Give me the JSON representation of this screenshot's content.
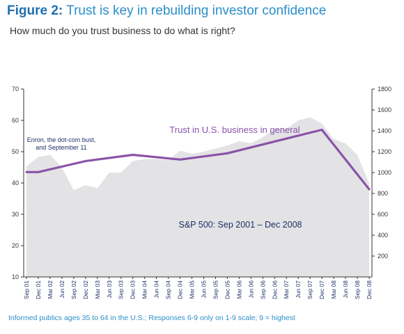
{
  "header": {
    "label": "Figure 2:",
    "title": "Trust is key in rebuilding investor confidence",
    "subtitle": "How much do you trust business to do what is right?"
  },
  "footnote": "Informed publics ages 35 to 64 in the U.S.; Responses 6-9 only on 1-9 scale; 9 = highest",
  "colors": {
    "trust_line": "#8b52a8",
    "sp500_area": "#e3e3e5",
    "title_blue": "#2a8fc9",
    "text_navy": "#1f2f66"
  },
  "chart_data": {
    "type": "area",
    "categories": [
      "Sep 01",
      "Dec 01",
      "Mar 02",
      "Jun 02",
      "Sep 02",
      "Dec 02",
      "Mar 03",
      "Jun 03",
      "Sep 03",
      "Dec 03",
      "Mar 04",
      "Jun 04",
      "Sep 04",
      "Dec 04",
      "Mar 05",
      "Jun 05",
      "Sep 05",
      "Dec 05",
      "Mar 06",
      "Jun 06",
      "Sep 06",
      "Dec 06",
      "Mar 07",
      "Jun 07",
      "Sep 07",
      "Dec 07",
      "Mar 08",
      "Jun 08",
      "Sep 08",
      "Dec 08"
    ],
    "y_left": {
      "min": 10,
      "max": 70,
      "ticks": [
        10,
        20,
        30,
        40,
        50,
        60,
        70
      ]
    },
    "y_right": {
      "min": 0,
      "max": 1800,
      "ticks": [
        200,
        400,
        600,
        800,
        1000,
        1200,
        1400,
        1600,
        1800
      ]
    },
    "grid": false,
    "series": [
      {
        "name": "Trust in U.S. business in general",
        "axis": "left",
        "type": "line",
        "points": [
          {
            "x": "Sep 01",
            "y": 43.5
          },
          {
            "x": "Dec 01",
            "y": 43.5
          },
          {
            "x": "Dec 02",
            "y": 47
          },
          {
            "x": "Dec 03",
            "y": 49
          },
          {
            "x": "Dec 04",
            "y": 47.5
          },
          {
            "x": "Dec 05",
            "y": 49.5
          },
          {
            "x": "Dec 07",
            "y": 57
          },
          {
            "x": "Dec 08",
            "y": 38
          }
        ]
      },
      {
        "name": "S&P 500: Sep 2001 – Dec 2008",
        "axis": "right",
        "type": "area",
        "values": [
          1060,
          1150,
          1170,
          1050,
          830,
          880,
          850,
          1000,
          1000,
          1110,
          1130,
          1130,
          1120,
          1210,
          1180,
          1200,
          1230,
          1260,
          1300,
          1280,
          1340,
          1420,
          1420,
          1500,
          1530,
          1470,
          1320,
          1280,
          1170,
          900
        ]
      }
    ],
    "annotations": [
      {
        "text": [
          "Enron, the dot-com bust,",
          "and September 11"
        ],
        "x": "Mar 02"
      }
    ]
  }
}
